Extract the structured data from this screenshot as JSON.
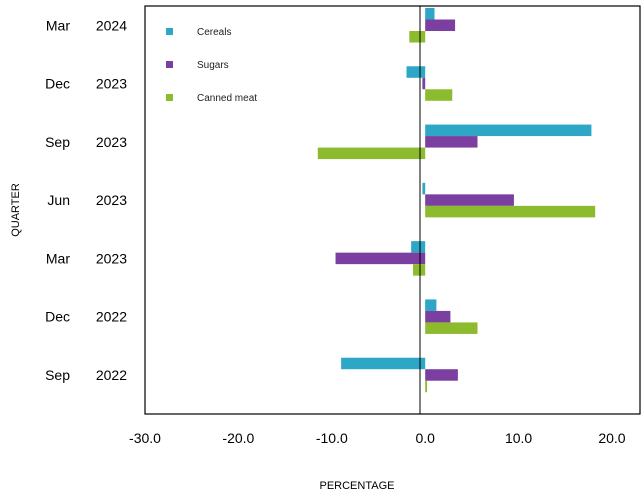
{
  "chart_data": {
    "type": "bar",
    "orientation": "horizontal",
    "title": "",
    "xlabel": "PERCENTAGE",
    "ylabel": "QUARTER",
    "categories": [
      {
        "month": "Mar",
        "year": "2024"
      },
      {
        "month": "Dec",
        "year": "2023"
      },
      {
        "month": "Sep",
        "year": "2023"
      },
      {
        "month": "Jun",
        "year": "2023"
      },
      {
        "month": "Mar",
        "year": "2023"
      },
      {
        "month": "Dec",
        "year": "2022"
      },
      {
        "month": "Sep",
        "year": "2022"
      }
    ],
    "series": [
      {
        "name": "Cereals",
        "color": "#2ea6c6",
        "values": [
          1.0,
          -2.0,
          17.8,
          -0.3,
          -1.5,
          1.2,
          -9.0
        ]
      },
      {
        "name": "Sugars",
        "color": "#7a3fa0",
        "values": [
          3.2,
          -0.3,
          5.6,
          9.5,
          -9.6,
          2.7,
          3.5
        ]
      },
      {
        "name": "Canned meat",
        "color": "#8dbb2e",
        "values": [
          -1.7,
          2.9,
          -11.5,
          18.2,
          -1.3,
          5.6,
          0.2
        ]
      }
    ],
    "xlim": [
      -30,
      23
    ],
    "xticks": [
      "-30.0",
      "-20.0",
      "-10.0",
      "0.0",
      "10.0",
      "20.0"
    ],
    "xtick_values": [
      -30,
      -20,
      -10,
      0,
      10,
      20
    ],
    "grid": false,
    "legend_position": "top-left"
  }
}
